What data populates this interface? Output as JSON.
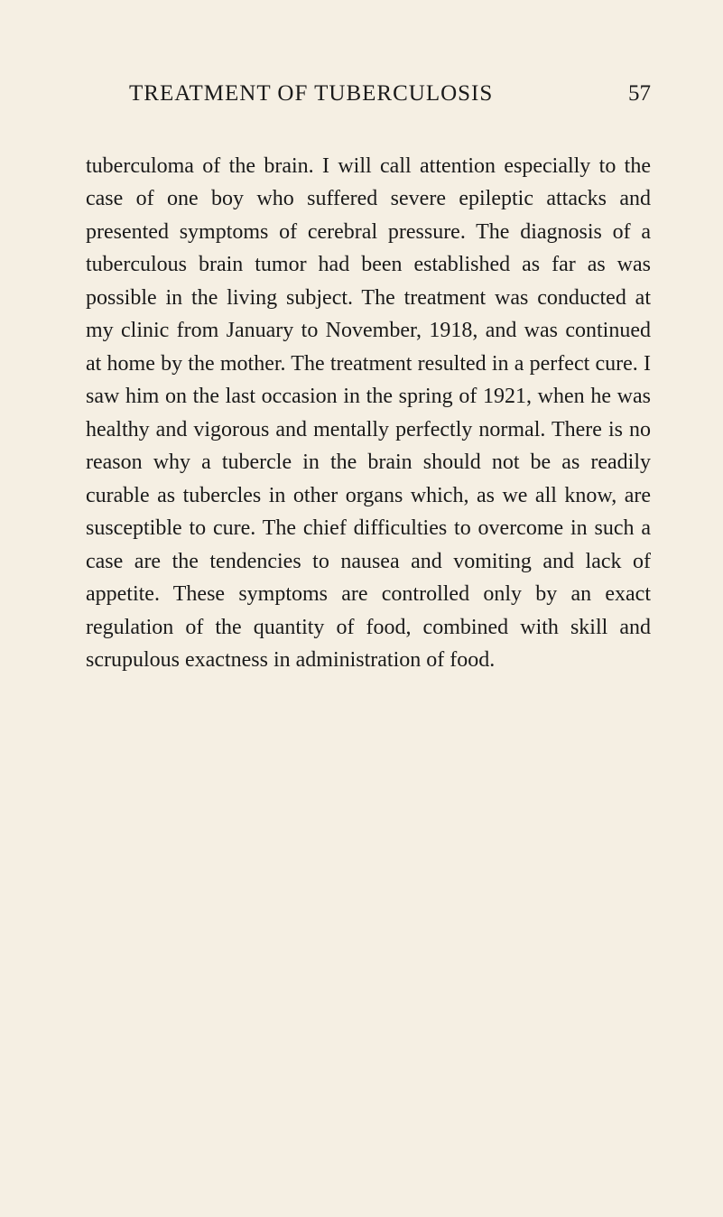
{
  "page": {
    "header_title": "TREATMENT OF TUBERCULOSIS",
    "page_number": "57",
    "body_text": "tuberculoma of the brain. I will call attention espe­cially to the case of one boy who suffered severe epileptic attacks and presented symptoms of cerebral pressure. The diagnosis of a tuberculous brain tumor had been established as far as was possible in the living subject. The treatment was conducted at my clinic from January to November, 1918, and was con­tinued at home by the mother. The treatment re­sulted in a perfect cure. I saw him on the last occa­sion in the spring of 1921, when he was healthy and vigorous and mentally perfectly normal. There is no reason why a tubercle in the brain should not be as readily curable as tubercles in other organs which, as we all know, are susceptible to cure. The chief diffi­culties to overcome in such a case are the tendencies to nausea and vomiting and lack of appetite. These symptoms are controlled only by an exact regulation of the quantity of food, combined with skill and scrupulous exactness in administration of food.",
    "background_color": "#f5efe3",
    "text_color": "#1a1a1a",
    "header_fontsize": 25,
    "body_fontsize": 24,
    "line_height": 1.52
  }
}
